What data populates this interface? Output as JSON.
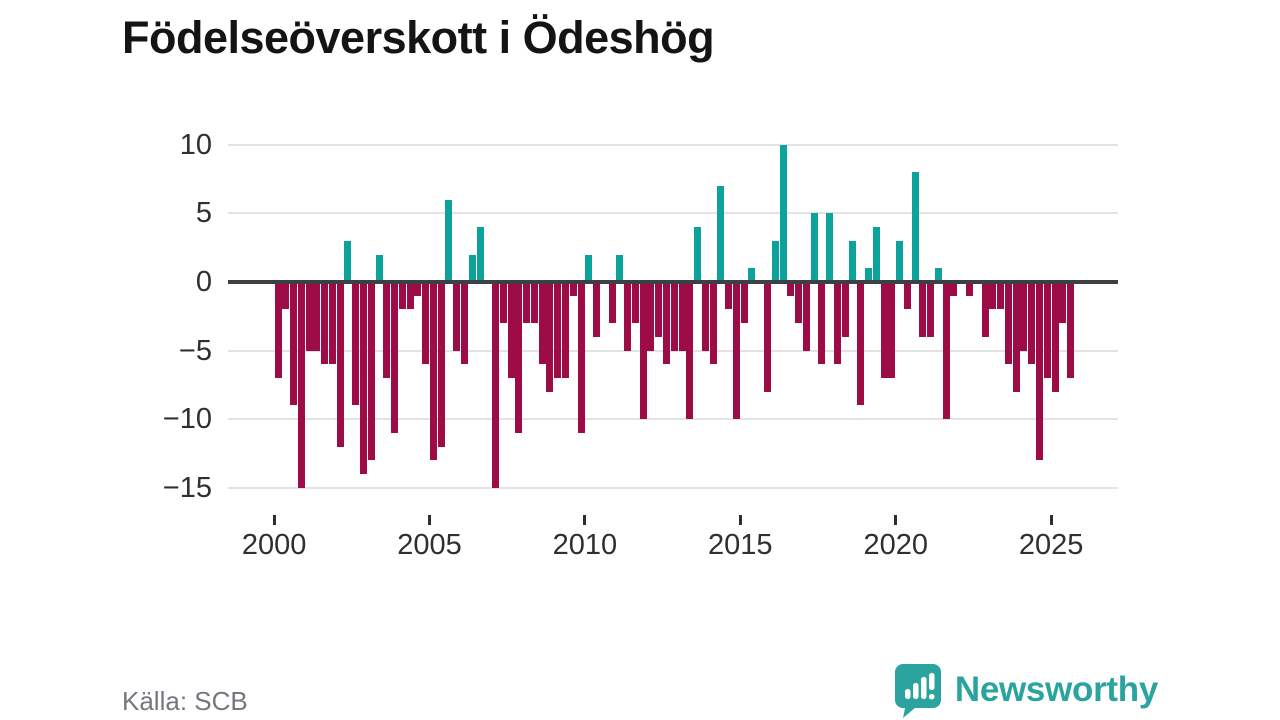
{
  "chart_data": {
    "type": "bar",
    "title": "Födelseöverskott i Ödeshög",
    "frequency": "quarterly",
    "start_period": "2000 Q1",
    "end_period": "2025 Q3",
    "values": [
      -7,
      -2,
      -9,
      -15,
      -5,
      -5,
      -6,
      -6,
      -12,
      3,
      -9,
      -14,
      -13,
      2,
      -7,
      -11,
      -2,
      -2,
      -1,
      -6,
      -13,
      -12,
      6,
      -5,
      -6,
      2,
      4,
      0,
      -15,
      -3,
      -7,
      -11,
      -3,
      -3,
      -6,
      -8,
      -7,
      -7,
      -1,
      -11,
      2,
      -4,
      0,
      -3,
      2,
      -5,
      -3,
      -10,
      -5,
      -4,
      -6,
      -5,
      -5,
      -10,
      4,
      -5,
      -6,
      7,
      -2,
      -10,
      -3,
      1,
      0,
      -8,
      3,
      10,
      -1,
      -3,
      -5,
      5,
      -6,
      5,
      -6,
      -4,
      3,
      -9,
      1,
      4,
      -7,
      -7,
      3,
      -2,
      8,
      -4,
      -4,
      1,
      -10,
      -1,
      0,
      -1,
      0,
      -4,
      -2,
      -2,
      -6,
      -8,
      -5,
      -6,
      -13,
      -7,
      -8,
      -3,
      -7
    ],
    "y_ticks": [
      10,
      5,
      0,
      -5,
      -10,
      -15
    ],
    "y_tick_labels": [
      "10",
      "5",
      "0",
      "−5",
      "−10",
      "−15"
    ],
    "x_tick_years": [
      2000,
      2005,
      2010,
      2015,
      2020,
      2025
    ],
    "x_tick_labels": [
      "2000",
      "2005",
      "2010",
      "2015",
      "2020",
      "2025"
    ],
    "ylim": [
      -15.6,
      10.35
    ],
    "grid_on": true,
    "positive_color": "#0da39c",
    "negative_color": "#9e0c48",
    "zero_line_color": "#3c4043",
    "grid_color": "#e3e3e3"
  },
  "footer": {
    "source": "Källa: SCB"
  },
  "logo": {
    "text": "Newsworthy",
    "color": "#2ba4a0",
    "icon": "speech-bubble-bar-chart-icon"
  }
}
